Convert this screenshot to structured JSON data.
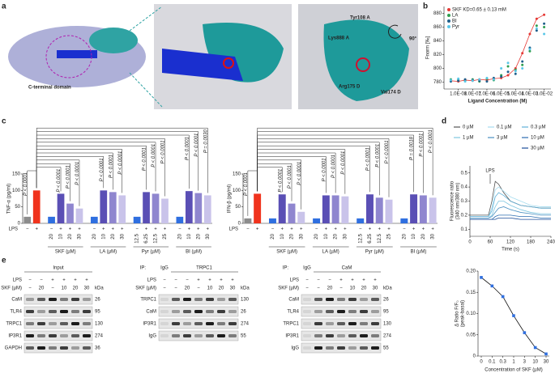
{
  "panel_labels": [
    "a",
    "b",
    "c",
    "d",
    "e"
  ],
  "panel_a": {
    "labels": [
      "C-terminal domain",
      "Tyr108 A",
      "Lys888 A",
      "Arg175 D",
      "Val174 D",
      "90°"
    ]
  },
  "panel_b": {
    "type": "scatter",
    "xlabel": "Ligand Concentration (M)",
    "ylabel": "Fnorm [‰]",
    "xlog": true,
    "xlim": [
      1e-09,
      0.03
    ],
    "xticks": [
      {
        "value": 1e-08,
        "label": "1.0E-08"
      },
      {
        "value": 1e-07,
        "label": "1.0E-07"
      },
      {
        "value": 1e-06,
        "label": "1.0E-06"
      },
      {
        "value": 1e-05,
        "label": "1.0E-05"
      },
      {
        "value": 0.0001,
        "label": "1.0E-04"
      },
      {
        "value": 0.001,
        "label": "1.0E-03"
      },
      {
        "value": 0.01,
        "label": "1.0E-02"
      }
    ],
    "ylim": [
      770,
      890
    ],
    "yticks": [
      780,
      800,
      820,
      840,
      860,
      880
    ],
    "x": [
      3e-09,
      1e-08,
      3e-08,
      1e-07,
      3e-07,
      1e-06,
      3e-06,
      1e-05,
      3e-05,
      0.0001,
      0.0003,
      0.001,
      0.003,
      0.01
    ],
    "series": [
      {
        "name": "SKF KD=0.65 ± 0.13 mM",
        "color": "#e53935",
        "values": [
          782,
          781,
          783,
          782,
          784,
          783,
          785,
          786,
          790,
          800,
          822,
          850,
          872,
          878
        ]
      },
      {
        "name": "LA",
        "color": "#2e9e4f",
        "values": [
          784,
          783,
          782,
          784,
          781,
          785,
          783,
          790,
          803,
          798,
          805,
          825,
          862,
          860
        ]
      },
      {
        "name": "BI",
        "color": "#1f5f8b",
        "values": [
          781,
          782,
          784,
          783,
          782,
          781,
          786,
          788,
          795,
          792,
          810,
          830,
          855,
          865
        ]
      },
      {
        "name": "Pyr",
        "color": "#5bc8e8",
        "values": [
          783,
          785,
          781,
          782,
          784,
          786,
          784,
          800,
          808,
          796,
          800,
          828,
          858,
          850
        ]
      }
    ]
  },
  "panel_c": {
    "charts": [
      {
        "type": "bar",
        "ylabel": "TNF-α (pg/ml)",
        "ylim": [
          0,
          150
        ],
        "yticks": [
          0,
          50,
          100,
          150
        ],
        "lps_label": "LPS",
        "values": [
          20,
          100,
          20,
          90,
          60,
          45,
          20,
          100,
          95,
          85,
          20,
          95,
          90,
          75,
          20,
          98,
          92,
          85
        ],
        "colors": [
          "#8c8c8c",
          "#f0331d",
          "#2f6fe0",
          "#5a4fb5",
          "#8f86cf",
          "#c9c3ea",
          "#2f6fe0",
          "#5a4fb5",
          "#8f86cf",
          "#c9c3ea",
          "#2f6fe0",
          "#5a4fb5",
          "#8f86cf",
          "#c9c3ea",
          "#2f6fe0",
          "#5a4fb5",
          "#8f86cf",
          "#c9c3ea"
        ],
        "lps": [
          "−",
          "+",
          "−",
          "+",
          "+",
          "+",
          "−",
          "+",
          "+",
          "+",
          "−",
          "+",
          "+",
          "+",
          "−",
          "+",
          "+",
          "+"
        ],
        "doses": [
          null,
          null,
          "20",
          "10",
          "20",
          "30",
          "20",
          "10",
          "20",
          "30",
          "12.5",
          "6.25",
          "12.5",
          "25",
          "20",
          "10",
          "20",
          "30"
        ],
        "groups": [
          "SKF (µM)",
          "LA (µM)",
          "Pyr (µM)",
          "BI (µM)"
        ],
        "annotations": [
          "P < 0.0001",
          "P < 0.0001",
          "P < 0.0001",
          "P < 0.0001",
          "P < 0.0001",
          "P < 0.0001",
          "P < 0.0001",
          "P < 0.0001",
          "P < 0.0001",
          "P < 0.0001",
          "P < 0.0001",
          "P < 0.0001",
          "P = 0.0030"
        ]
      },
      {
        "type": "bar",
        "ylabel": "IFN-β (pg/ml)",
        "ylim": [
          0,
          150
        ],
        "yticks": [
          0,
          50,
          100,
          150
        ],
        "lps_label": "LPS",
        "values": [
          15,
          90,
          15,
          88,
          60,
          35,
          15,
          85,
          85,
          82,
          15,
          88,
          78,
          72,
          15,
          88,
          85,
          78
        ],
        "colors": [
          "#8c8c8c",
          "#f0331d",
          "#2f6fe0",
          "#5a4fb5",
          "#8f86cf",
          "#c9c3ea",
          "#2f6fe0",
          "#5a4fb5",
          "#8f86cf",
          "#c9c3ea",
          "#2f6fe0",
          "#5a4fb5",
          "#8f86cf",
          "#c9c3ea",
          "#2f6fe0",
          "#5a4fb5",
          "#8f86cf",
          "#c9c3ea"
        ],
        "lps": [
          "−",
          "+",
          "−",
          "+",
          "+",
          "+",
          "−",
          "+",
          "+",
          "+",
          "−",
          "+",
          "+",
          "+",
          "−",
          "+",
          "+",
          "+"
        ],
        "doses": [
          null,
          null,
          "20",
          "10",
          "20",
          "30",
          "20",
          "10",
          "20",
          "30",
          "12.5",
          "6.25",
          "12.5",
          "25",
          "20",
          "10",
          "20",
          "30"
        ],
        "groups": [
          "SKF (µM)",
          "LA (µM)",
          "Pyr (µM)",
          "BI (µM)"
        ],
        "annotations": [
          "P < 0.0001",
          "P < 0.0001",
          "P < 0.0001",
          "P < 0.0001",
          "P < 0.0001",
          "P < 0.0001",
          "P < 0.0001",
          "P < 0.0001",
          "P < 0.0001",
          "P < 0.0001",
          "P = 0.0018",
          "P < 0.0001",
          "P < 0.0001"
        ]
      }
    ]
  },
  "panel_d": {
    "type": "line",
    "ylabel": [
      "Fluorescence ratio",
      "(340 nm/380 nm)"
    ],
    "xlabel": "Time (s)",
    "annotation": "LPS",
    "xlim": [
      0,
      240
    ],
    "xticks": [
      0,
      60,
      120,
      180,
      240
    ],
    "ylim": [
      0.05,
      0.55
    ],
    "yticks": [
      0.1,
      0.2,
      0.3,
      0.4,
      0.5
    ],
    "x": [
      0,
      30,
      55,
      65,
      75,
      85,
      100,
      120,
      150,
      180,
      210,
      240
    ],
    "series": [
      {
        "name": "0 µM",
        "color": "#555555",
        "values": [
          0.2,
          0.2,
          0.2,
          0.3,
          0.44,
          0.42,
          0.36,
          0.3,
          0.27,
          0.26,
          0.25,
          0.25
        ]
      },
      {
        "name": "0.1 µM",
        "color": "#a6dcef",
        "values": [
          0.19,
          0.19,
          0.19,
          0.25,
          0.38,
          0.4,
          0.37,
          0.33,
          0.3,
          0.27,
          0.26,
          0.26
        ]
      },
      {
        "name": "0.3 µM",
        "color": "#5fb0d8",
        "values": [
          0.19,
          0.19,
          0.19,
          0.23,
          0.33,
          0.36,
          0.34,
          0.3,
          0.27,
          0.26,
          0.25,
          0.25
        ]
      },
      {
        "name": "1 µM",
        "color": "#7fc6e0",
        "values": [
          0.18,
          0.18,
          0.18,
          0.2,
          0.26,
          0.3,
          0.3,
          0.27,
          0.24,
          0.22,
          0.21,
          0.21
        ]
      },
      {
        "name": "3 µM",
        "color": "#4a90c2",
        "values": [
          0.18,
          0.18,
          0.18,
          0.19,
          0.22,
          0.25,
          0.26,
          0.24,
          0.22,
          0.21,
          0.2,
          0.2
        ]
      },
      {
        "name": "10 µM",
        "color": "#2b6cb0",
        "values": [
          0.17,
          0.17,
          0.17,
          0.17,
          0.19,
          0.2,
          0.2,
          0.2,
          0.19,
          0.19,
          0.18,
          0.18
        ]
      },
      {
        "name": "30 µM",
        "color": "#1d4e9a",
        "values": [
          0.17,
          0.17,
          0.17,
          0.17,
          0.17,
          0.18,
          0.18,
          0.18,
          0.17,
          0.17,
          0.17,
          0.17
        ]
      }
    ]
  },
  "panel_e": {
    "blots": [
      {
        "header": "Input",
        "lps_label": "LPS",
        "skf_label": "SKF (µM)",
        "kda": "kDa",
        "lps": [
          "−",
          "−",
          "+",
          "+",
          "+",
          "+"
        ],
        "skf": [
          "−",
          "20",
          "−",
          "10",
          "20",
          "30"
        ],
        "rows": [
          [
            "CaM",
            "26"
          ],
          [
            "TLR4",
            "95"
          ],
          [
            "TRPC1",
            "130"
          ],
          [
            "IP3R1",
            "274"
          ],
          [
            "GAPDH",
            "36"
          ]
        ]
      },
      {
        "ip": "IP:",
        "control": "IgG",
        "header": "TRPC1",
        "lps_label": "LPS",
        "skf_label": "SKF (µM)",
        "kda": "kDa",
        "lps": [
          "−",
          "−",
          "−",
          "+",
          "+",
          "+",
          "+"
        ],
        "skf": [
          "−",
          "−",
          "20",
          "−",
          "10",
          "20",
          "30"
        ],
        "rows": [
          [
            "TRPC1",
            "130"
          ],
          [
            "CaM",
            "26"
          ],
          [
            "IP3R1",
            "274"
          ],
          [
            "IgG",
            "55"
          ]
        ]
      },
      {
        "ip": "IP:",
        "control": "IgG",
        "header": "CaM",
        "lps_label": "LPS",
        "skf_label": "SKF (µM)",
        "kda": "kDa",
        "lps": [
          "−",
          "−",
          "−",
          "+",
          "+",
          "+",
          "+"
        ],
        "skf": [
          "−",
          "−",
          "20",
          "−",
          "10",
          "20",
          "30"
        ],
        "rows": [
          [
            "CaM",
            "26"
          ],
          [
            "TLR4",
            "95"
          ],
          [
            "TRPC1",
            "130"
          ],
          [
            "IP3R1",
            "274"
          ],
          [
            "IgG",
            "55"
          ]
        ]
      }
    ],
    "chart": {
      "type": "line",
      "xlabel": "Concentration of SKF (µM)",
      "ylabel": [
        "Δ Ratio F/F₀",
        "(peak-basal)"
      ],
      "categories": [
        "0",
        "0.1",
        "0.3",
        "1",
        "3",
        "10",
        "30"
      ],
      "values": [
        0.185,
        0.165,
        0.14,
        0.095,
        0.055,
        0.02,
        0.005
      ],
      "color": "#2f6fe0",
      "ylim": [
        0,
        0.2
      ],
      "yticks": [
        0,
        0.05,
        {
          "value": 0.1,
          "label": "0.10"
        },
        0.15,
        {
          "value": 0.2,
          "label": "0.20"
        }
      ]
    }
  }
}
